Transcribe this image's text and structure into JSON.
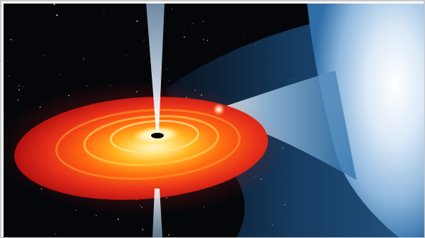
{
  "image": {
    "subject": "black-hole-accretion-disk-with-companion-star",
    "colors": {
      "space": "#05060a",
      "disk_outer": "#d91a12",
      "disk_mid": "#ff6a10",
      "disk_inner": "#ffd23a",
      "disk_core": "#fff6c8",
      "event_horizon": "#0a0503",
      "jet": "#dfe9f5",
      "gas_stream": "#2d6fa8",
      "gas_stream_light": "#7fb6e0",
      "companion_star": "#e8f2fb",
      "hotspot": "#ffffff",
      "border": "#c8c8c8"
    }
  }
}
